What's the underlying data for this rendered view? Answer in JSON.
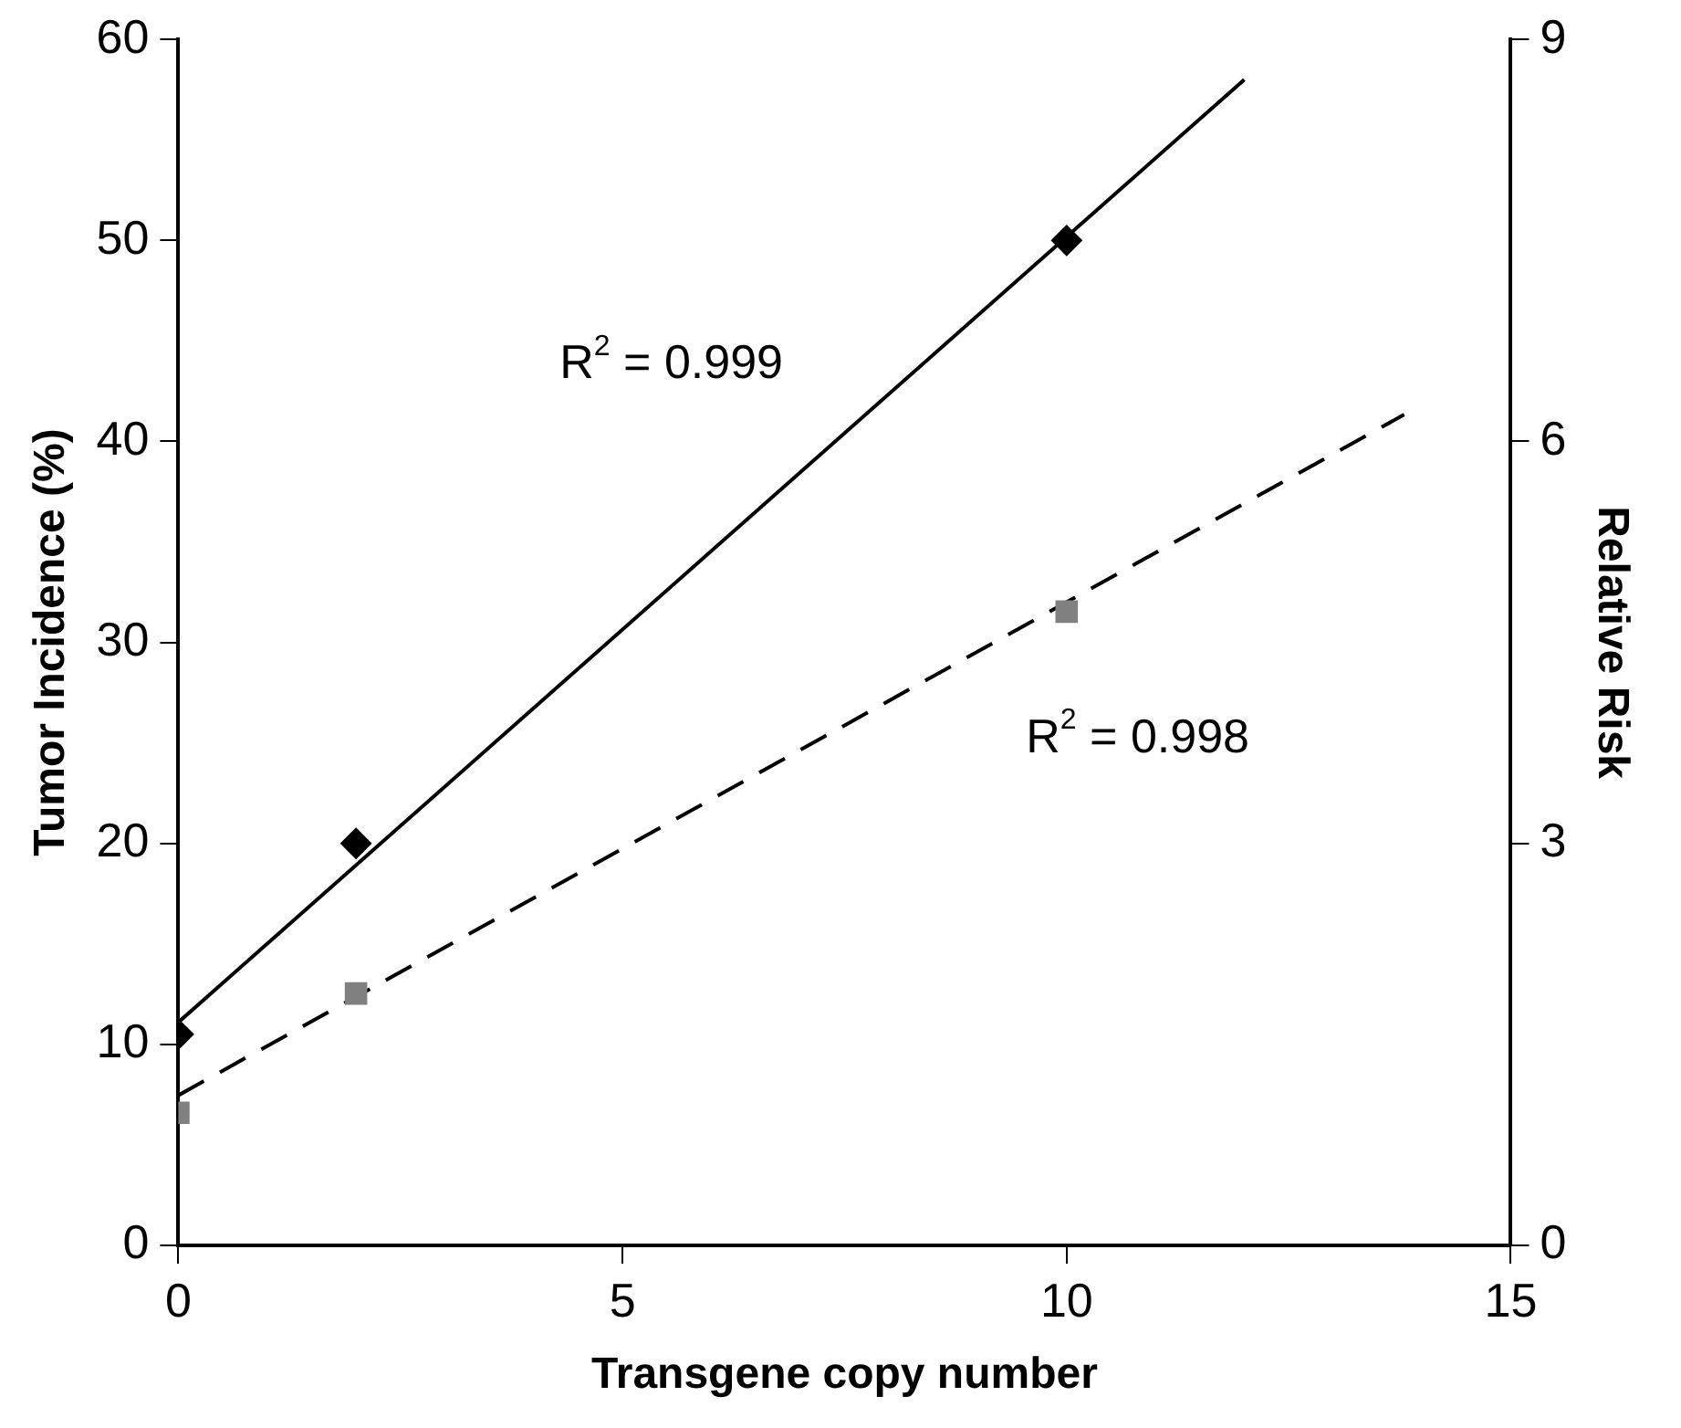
{
  "chart_data": {
    "type": "scatter",
    "xlabel": "Transgene copy number",
    "ylabel": "Tumor Incidence (%)",
    "y2label": "Relative Risk",
    "xlim": [
      0,
      15
    ],
    "xticks": [
      0,
      5,
      10,
      15
    ],
    "ylim": [
      0,
      60
    ],
    "yticks": [
      0,
      10,
      20,
      30,
      40,
      50,
      60
    ],
    "y2lim": [
      0,
      9
    ],
    "y2ticks": [
      0,
      3,
      6,
      9
    ],
    "series": [
      {
        "type": "scatter",
        "x": [
          0,
          2,
          10
        ],
        "values": [
          10.5,
          20,
          50
        ],
        "color": "#000000",
        "marker": "diamond"
      },
      {
        "type": "line",
        "x": [
          0,
          12
        ],
        "values": [
          11.1,
          58
        ],
        "color": "#000000",
        "marker": "none",
        "line_style": "solid"
      },
      {
        "type": "scatter",
        "x": [
          0,
          2,
          10
        ],
        "values": [
          0.99,
          1.88,
          4.73
        ],
        "color": "#808080",
        "marker": "square",
        "axis": "y2"
      },
      {
        "type": "line",
        "x": [
          0,
          13.8
        ],
        "values": [
          1.12,
          6.2
        ],
        "color": "#000000",
        "marker": "none",
        "line_style": "dashed",
        "axis": "y2"
      }
    ],
    "annotations": [
      "R$^{2}$ = 0.999",
      "R$^{2}$ = 0.998"
    ]
  }
}
